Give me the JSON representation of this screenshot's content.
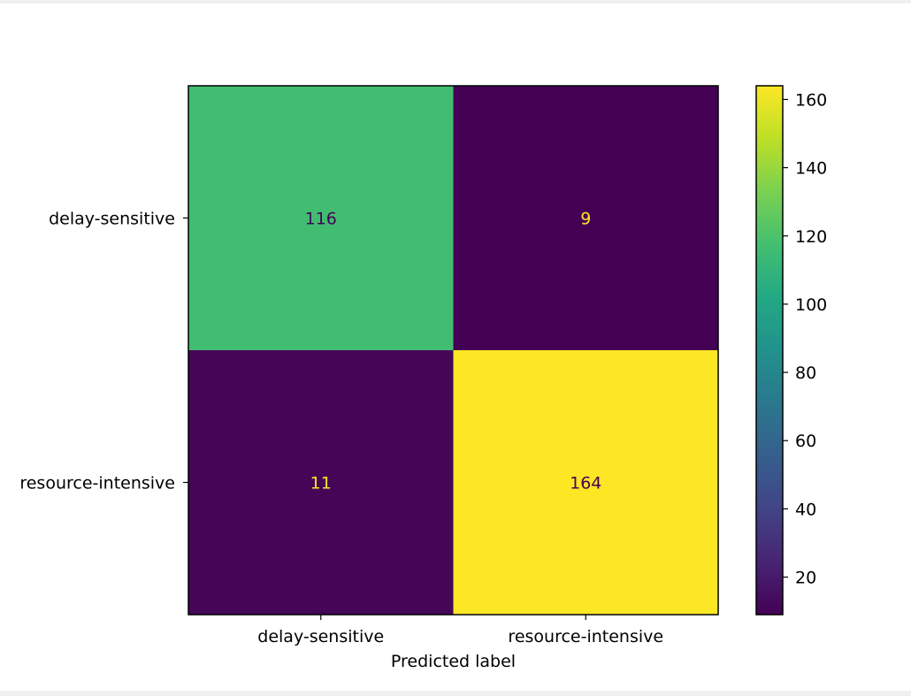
{
  "chart_data": {
    "type": "heatmap",
    "title": "",
    "xlabel": "Predicted label",
    "ylabel": "",
    "x_categories": [
      "delay-sensitive",
      "resource-intensive"
    ],
    "y_categories": [
      "delay-sensitive",
      "resource-intensive"
    ],
    "values": [
      [
        116,
        9
      ],
      [
        11,
        164
      ]
    ],
    "colormap": "viridis",
    "colorbar": {
      "min": 9,
      "max": 164,
      "ticks": [
        20,
        40,
        60,
        80,
        100,
        120,
        140,
        160
      ]
    },
    "grid": false
  }
}
